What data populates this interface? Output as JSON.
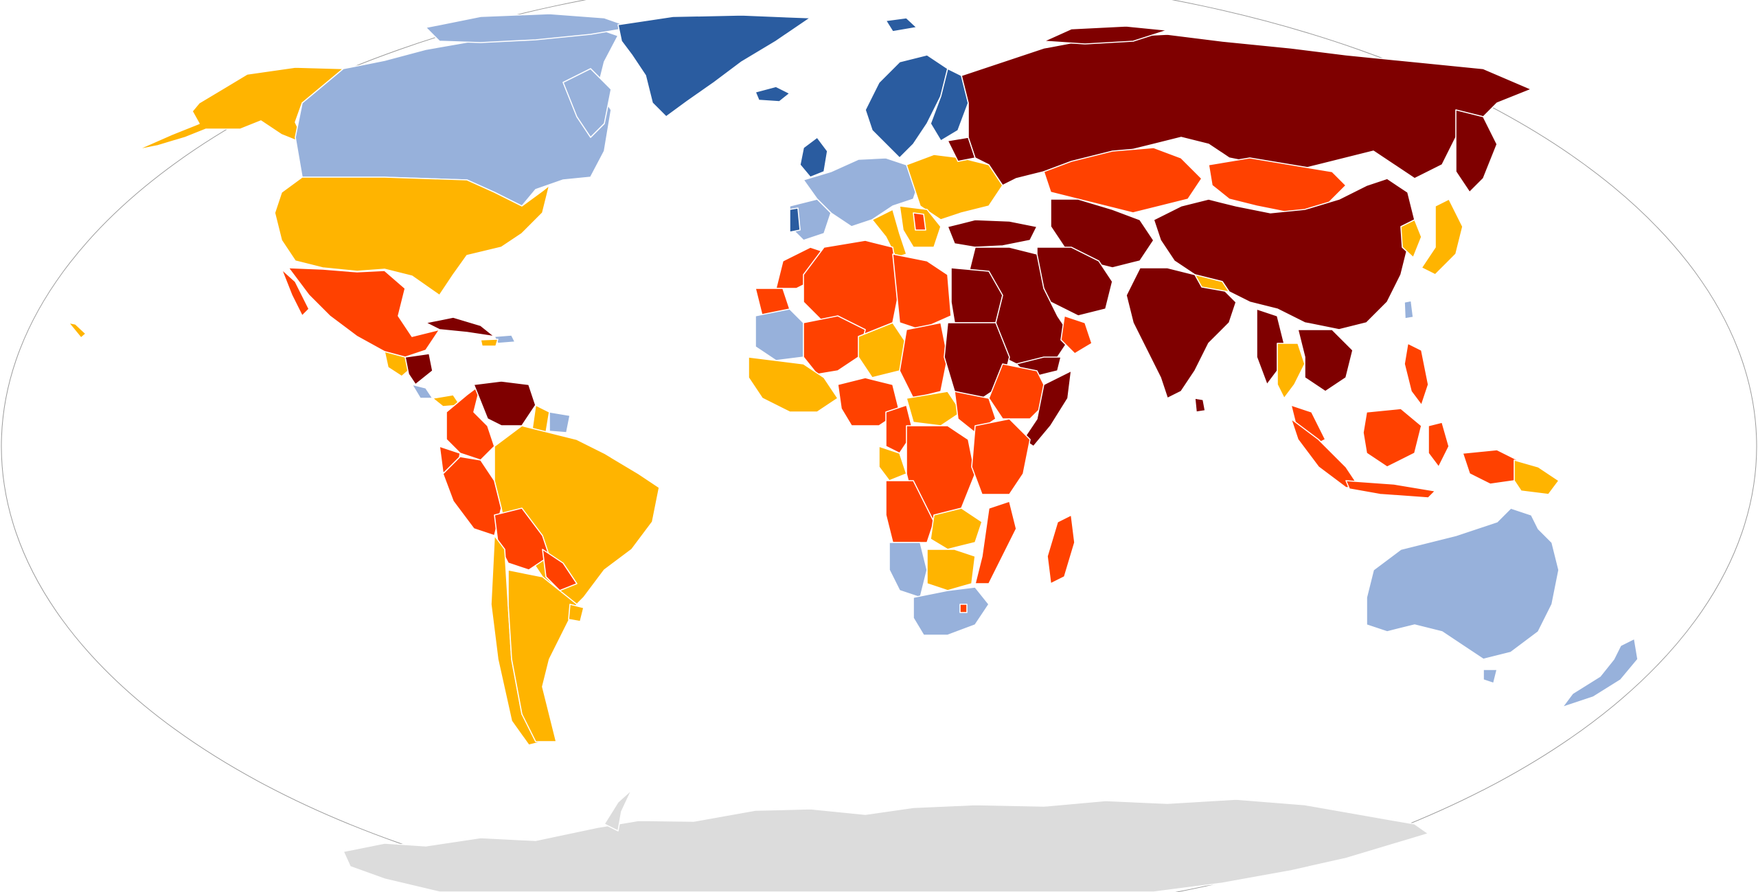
{
  "map": {
    "projection": "robinson",
    "colors": {
      "c1": "#2a5ca0",
      "c2": "#97b1db",
      "c3": "#ffb400",
      "c4": "#ff4100",
      "c5": "#7f0000",
      "none": "#dcdcdc",
      "ocean": "#ffffff",
      "border": "#ffffff",
      "outline": "#9a9a9a"
    }
  }
}
